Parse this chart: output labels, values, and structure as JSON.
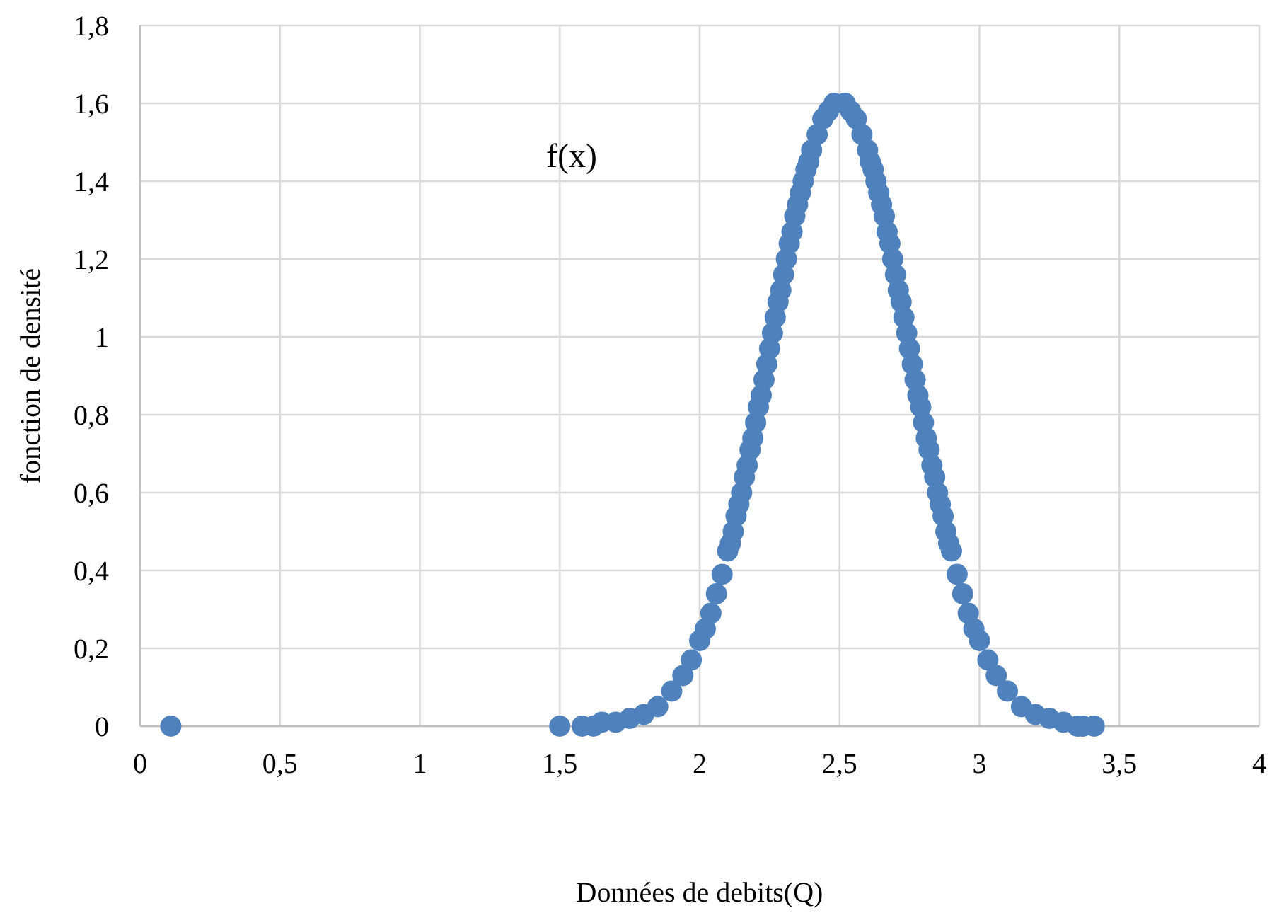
{
  "chart_data": {
    "type": "scatter",
    "xlabel": "Données de debits(Q)",
    "ylabel": "fonction de densité",
    "xlim": [
      0,
      4
    ],
    "ylim": [
      0,
      1.8
    ],
    "xticks": [
      0,
      {
        "value": 0.5,
        "label": "0,5"
      },
      1,
      {
        "value": 1.5,
        "label": "1,5"
      },
      2,
      {
        "value": 2.5,
        "label": "2,5"
      },
      3,
      {
        "value": 3.5,
        "label": "3,5"
      },
      4
    ],
    "yticks": [
      0,
      {
        "value": 0.2,
        "label": "0,2"
      },
      {
        "value": 0.4,
        "label": "0,4"
      },
      {
        "value": 0.6,
        "label": "0,6"
      },
      {
        "value": 0.8,
        "label": "0,8"
      },
      1,
      {
        "value": 1.2,
        "label": "1,2"
      },
      {
        "value": 1.4,
        "label": "1,4"
      },
      {
        "value": 1.6,
        "label": "1,6"
      },
      {
        "value": 1.8,
        "label": "1,8"
      }
    ],
    "grid": true,
    "marker": "circle",
    "annotations": [
      "f(x)"
    ],
    "series": [
      {
        "color": "#4f81bd",
        "x": [
          0.11,
          1.5,
          1.58,
          1.62,
          1.65,
          1.7,
          1.75,
          1.8,
          1.85,
          1.9,
          1.94,
          1.97,
          2.0,
          2.02,
          2.04,
          2.06,
          2.08,
          2.1,
          2.11,
          2.12,
          2.13,
          2.14,
          2.15,
          2.16,
          2.17,
          2.18,
          2.19,
          2.2,
          2.21,
          2.22,
          2.23,
          2.24,
          2.25,
          2.26,
          2.27,
          2.28,
          2.29,
          2.3,
          2.31,
          2.32,
          2.33,
          2.34,
          2.35,
          2.36,
          2.37,
          2.38,
          2.39,
          2.4,
          2.42,
          2.44,
          2.46,
          2.48,
          2.52,
          2.54,
          2.56,
          2.58,
          2.6,
          2.61,
          2.62,
          2.63,
          2.64,
          2.65,
          2.66,
          2.67,
          2.68,
          2.69,
          2.7,
          2.71,
          2.72,
          2.73,
          2.74,
          2.75,
          2.76,
          2.77,
          2.78,
          2.79,
          2.8,
          2.81,
          2.82,
          2.83,
          2.84,
          2.85,
          2.86,
          2.87,
          2.88,
          2.89,
          2.9,
          2.92,
          2.94,
          2.96,
          2.98,
          3.0,
          3.03,
          3.06,
          3.1,
          3.15,
          3.2,
          3.25,
          3.3,
          3.35,
          3.37,
          3.41
        ],
        "values": [
          0,
          0,
          0,
          0,
          0.01,
          0.01,
          0.02,
          0.03,
          0.05,
          0.09,
          0.13,
          0.17,
          0.22,
          0.25,
          0.29,
          0.34,
          0.39,
          0.45,
          0.47,
          0.5,
          0.54,
          0.57,
          0.6,
          0.64,
          0.67,
          0.71,
          0.74,
          0.78,
          0.82,
          0.85,
          0.89,
          0.93,
          0.97,
          1.01,
          1.05,
          1.09,
          1.12,
          1.16,
          1.2,
          1.24,
          1.27,
          1.31,
          1.34,
          1.37,
          1.4,
          1.43,
          1.45,
          1.48,
          1.52,
          1.56,
          1.58,
          1.6,
          1.6,
          1.58,
          1.56,
          1.52,
          1.48,
          1.45,
          1.43,
          1.4,
          1.37,
          1.34,
          1.31,
          1.27,
          1.24,
          1.2,
          1.16,
          1.12,
          1.09,
          1.05,
          1.01,
          0.97,
          0.93,
          0.89,
          0.85,
          0.82,
          0.78,
          0.74,
          0.71,
          0.67,
          0.64,
          0.6,
          0.57,
          0.54,
          0.5,
          0.47,
          0.45,
          0.39,
          0.34,
          0.29,
          0.25,
          0.22,
          0.17,
          0.13,
          0.09,
          0.05,
          0.03,
          0.02,
          0.01,
          0,
          0,
          0
        ]
      }
    ]
  }
}
